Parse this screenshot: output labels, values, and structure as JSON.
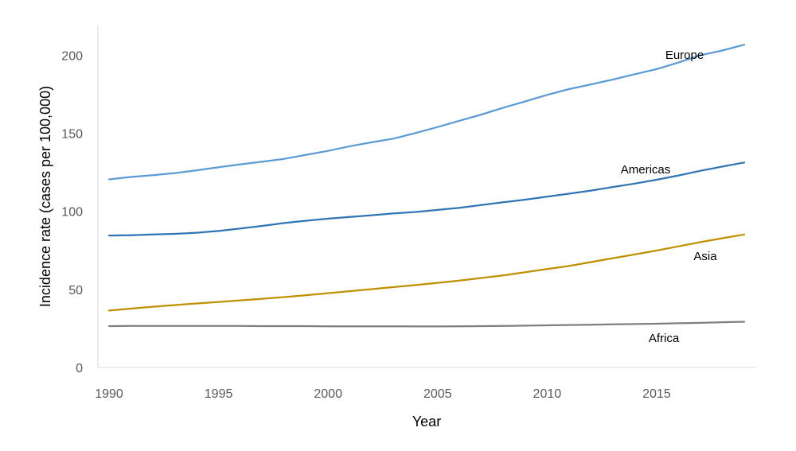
{
  "chart_data": {
    "type": "line",
    "title": "",
    "xlabel": "Year",
    "ylabel": "Incidence rate (cases per 100,000)",
    "xlim": [
      1990,
      2019
    ],
    "ylim": [
      0,
      220
    ],
    "x_ticks": [
      1990,
      1995,
      2000,
      2005,
      2010,
      2015
    ],
    "y_ticks": [
      0,
      50,
      100,
      150,
      200
    ],
    "grid": false,
    "legend": "none (series labelled directly on lines)",
    "x": [
      1990,
      1991,
      1992,
      1993,
      1994,
      1995,
      1996,
      1997,
      1998,
      1999,
      2000,
      2001,
      2002,
      2003,
      2004,
      2005,
      2006,
      2007,
      2008,
      2009,
      2010,
      2011,
      2012,
      2013,
      2014,
      2015,
      2016,
      2017,
      2018,
      2019
    ],
    "series": [
      {
        "name": "Europe",
        "color": "#5b9bd5",
        "values": [
          120.5,
          122.0,
          123.2,
          124.5,
          126.3,
          128.2,
          130.1,
          131.8,
          133.6,
          136.2,
          138.7,
          141.7,
          144.2,
          146.6,
          150.2,
          154.0,
          158.0,
          162.0,
          166.4,
          170.4,
          174.6,
          178.3,
          181.3,
          184.4,
          187.8,
          191.1,
          195.3,
          200.0,
          203.0,
          206.7
        ]
      },
      {
        "name": "Americas",
        "color": "#2e75b6",
        "values": [
          84.5,
          84.7,
          85.2,
          85.6,
          86.3,
          87.4,
          89.0,
          90.7,
          92.5,
          94.0,
          95.3,
          96.4,
          97.5,
          98.7,
          99.6,
          100.9,
          102.3,
          104.0,
          105.8,
          107.5,
          109.4,
          111.3,
          113.3,
          115.6,
          117.8,
          120.2,
          123.0,
          126.0,
          128.7,
          131.3
        ]
      },
      {
        "name": "Asia",
        "color": "#bf9000",
        "values": [
          36.5,
          37.7,
          38.9,
          40.0,
          41.0,
          42.0,
          43.0,
          44.0,
          45.1,
          46.3,
          47.6,
          48.9,
          50.2,
          51.5,
          52.8,
          54.2,
          55.7,
          57.3,
          59.0,
          61.0,
          63.0,
          65.0,
          67.5,
          70.0,
          72.4,
          74.9,
          77.6,
          80.3,
          82.8,
          85.2
        ]
      },
      {
        "name": "Africa",
        "color": "#7f7f7f",
        "values": [
          26.5,
          26.6,
          26.6,
          26.6,
          26.6,
          26.6,
          26.6,
          26.5,
          26.5,
          26.5,
          26.4,
          26.4,
          26.4,
          26.4,
          26.3,
          26.3,
          26.4,
          26.5,
          26.6,
          26.8,
          27.0,
          27.2,
          27.4,
          27.6,
          27.8,
          28.0,
          28.3,
          28.6,
          29.0,
          29.3
        ]
      }
    ]
  }
}
